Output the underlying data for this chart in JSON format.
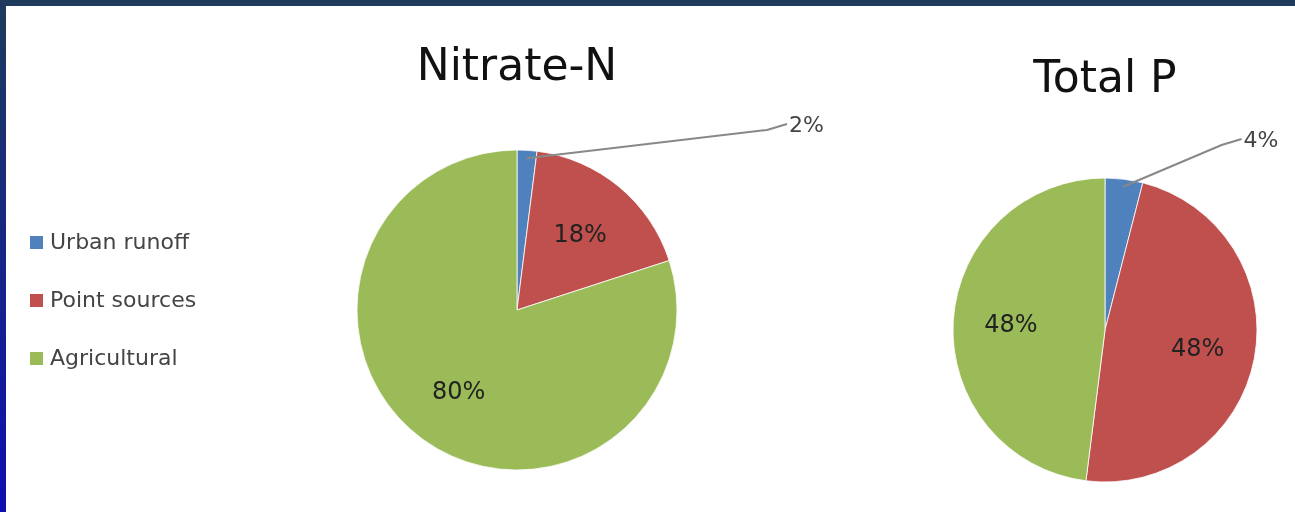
{
  "chart_data": [
    {
      "type": "pie",
      "title": "Nitrate-N",
      "categories": [
        "Urban runoff",
        "Point sources",
        "Agricultural"
      ],
      "values": [
        2,
        18,
        80
      ],
      "colors": [
        "#4f81bd",
        "#c0504d",
        "#9bbb59"
      ],
      "value_labels": [
        "2%",
        "18%",
        "80%"
      ],
      "legend": "left"
    },
    {
      "type": "pie",
      "title": "Total P",
      "categories": [
        null,
        null,
        null
      ],
      "values": [
        4,
        48,
        48
      ],
      "colors": [
        "#4f81bd",
        "#c0504d",
        "#9bbb59"
      ],
      "value_labels": [
        "4%",
        "48%",
        "48%"
      ]
    }
  ]
}
